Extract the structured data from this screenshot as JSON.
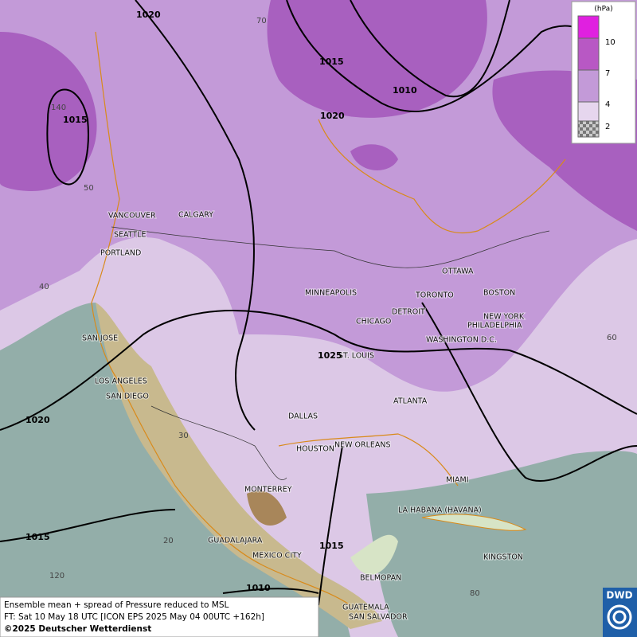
{
  "map": {
    "cities": [
      "VANCOUVER",
      "CALGARY",
      "SEATTLE",
      "PORTLAND",
      "MINNEAPOLIS",
      "OTTAWA",
      "TORONTO",
      "BOSTON",
      "DETROIT",
      "NEW YORK",
      "PHILADELPHIA",
      "CHICAGO",
      "WASHINGTON D.C.",
      "SAN JOSE",
      "ST. LOUIS",
      "LOS ANGELES",
      "SAN DIEGO",
      "ATLANTA",
      "DALLAS",
      "HOUSTON",
      "NEW ORLEANS",
      "MIAMI",
      "MONTERREY",
      "LA HABANA (HAVANA)",
      "GUADALAJARA",
      "MEXICO CITY",
      "KINGSTON",
      "BELMOPAN",
      "GUATEMALA",
      "SAN SALVADOR"
    ],
    "isobar_labels": [
      1020,
      1015,
      1010,
      1020,
      1015,
      1020,
      1015,
      1015,
      1010,
      1025
    ],
    "graticule_labels": [
      70,
      140,
      50,
      40,
      60,
      30,
      20,
      120,
      80
    ]
  },
  "legend": {
    "unit": "(hPa)",
    "levels": [
      10,
      7,
      4,
      2
    ]
  },
  "info": {
    "lines": [
      "Ensemble mean + spread of Pressure reduced to MSL",
      "FT: Sat 10 May 18 UTC [ICON EPS 2025 May 04 00UTC +162h]",
      "©2025 Deutscher Wetterdienst"
    ]
  },
  "logo": "DWD"
}
